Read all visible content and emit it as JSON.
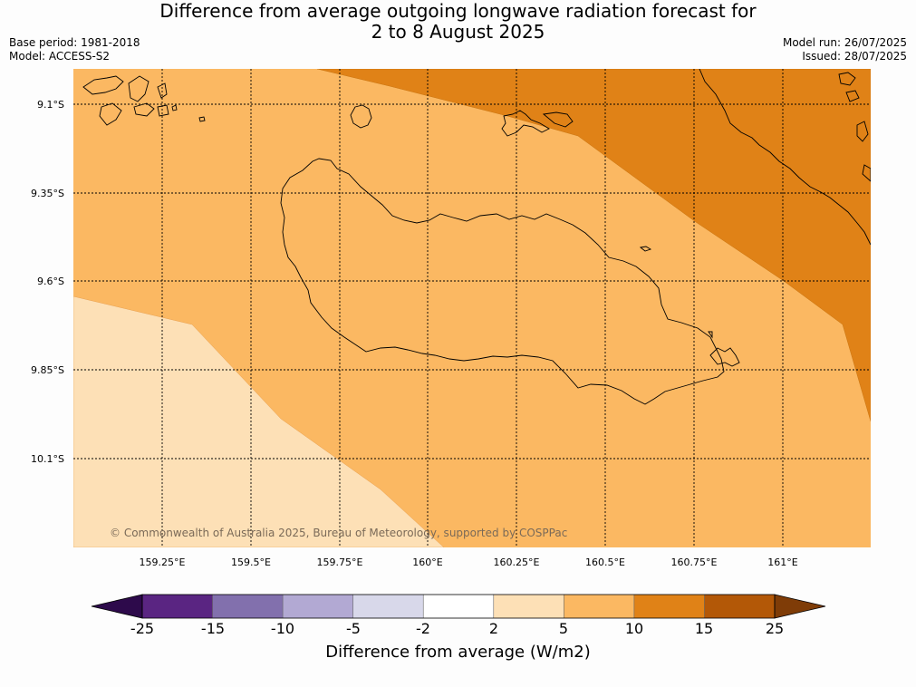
{
  "title": {
    "line1": "Difference from average outgoing longwave radiation forecast for",
    "line2": "2 to 8 August 2025"
  },
  "meta": {
    "base_period": "Base period: 1981-2018",
    "model": "Model: ACCESS-S2",
    "model_run": "Model run: 26/07/2025",
    "issued": "Issued: 28/07/2025"
  },
  "map": {
    "lat_labels": [
      "9.1°S",
      "9.35°S",
      "9.6°S",
      "9.85°S",
      "10.1°S"
    ],
    "lon_labels": [
      "159.25°E",
      "159.5°E",
      "159.75°E",
      "160°E",
      "160.25°E",
      "160.5°E",
      "160.75°E",
      "161°E"
    ],
    "copyright": "© Commonwealth of Australia 2025, Bureau of Meteorology, supported by COSPPac",
    "fill_colors": {
      "band_2_to_5": "#fde0b6",
      "band_5_to_10": "#fbb862",
      "band_10_to_15": "#e08217"
    }
  },
  "colorbar": {
    "tick_labels": [
      "-25",
      "-15",
      "-10",
      "-5",
      "-2",
      "2",
      "5",
      "10",
      "15",
      "25"
    ],
    "colors": [
      "#5a2582",
      "#8270ad",
      "#b2a9d3",
      "#d8d8ea",
      "#ffffff",
      "#fde0b6",
      "#fbb862",
      "#e08217",
      "#b35807"
    ],
    "under_color": "#2d0a4b",
    "over_color": "#7f3c07",
    "label": "Difference from average (W/m2)"
  }
}
